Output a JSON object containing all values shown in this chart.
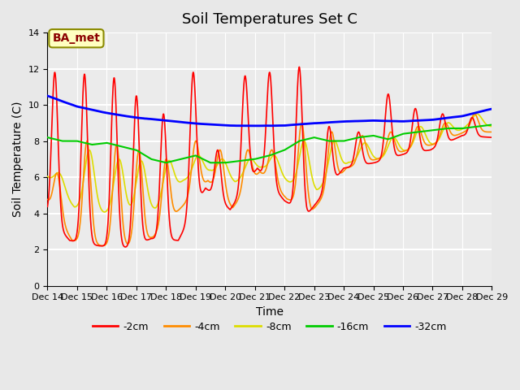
{
  "title": "Soil Temperatures Set C",
  "xlabel": "Time",
  "ylabel": "Soil Temperature (C)",
  "ylim": [
    0,
    14
  ],
  "yticks": [
    0,
    2,
    4,
    6,
    8,
    10,
    12,
    14
  ],
  "annotation_text": "BA_met",
  "annotation_color": "#8B0000",
  "annotation_bg": "#FFFFC0",
  "annotation_border": "#8B8B00",
  "legend_entries": [
    "-2cm",
    "-4cm",
    "-8cm",
    "-16cm",
    "-32cm"
  ],
  "line_colors": [
    "#FF0000",
    "#FF8C00",
    "#DDDD00",
    "#00CC00",
    "#0000FF"
  ],
  "line_widths": [
    1.2,
    1.2,
    1.2,
    1.5,
    2.0
  ],
  "x_tick_labels": [
    "Dec 14",
    "Dec 15",
    "Dec 16",
    "Dec 17",
    "Dec 18",
    "Dec 19",
    "Dec 20",
    "Dec 21",
    "Dec 22",
    "Dec 23",
    "Dec 24",
    "Dec 25",
    "Dec 26",
    "Dec 27",
    "Dec 28",
    "Dec 29"
  ],
  "x_tick_positions": [
    0,
    24,
    48,
    72,
    96,
    120,
    144,
    168,
    192,
    216,
    240,
    264,
    288,
    312,
    336,
    360
  ]
}
